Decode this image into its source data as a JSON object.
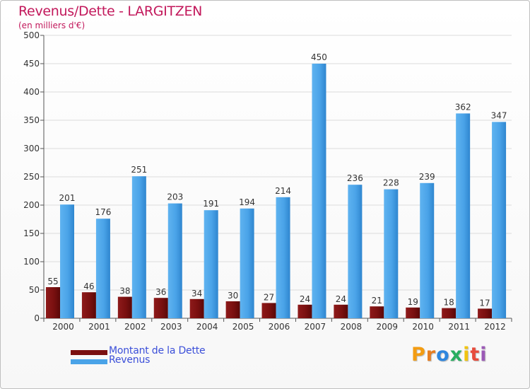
{
  "header": {
    "title": "Revenus/Dette - LARGITZEN",
    "subtitle": "(en milliers d'€)"
  },
  "legend": {
    "dette_label": "Montant de la Dette",
    "revenus_label": "Revenus"
  },
  "logo": {
    "text": "Proxiti",
    "letters": [
      "P",
      "r",
      "o",
      "x",
      "i",
      "t",
      "i"
    ],
    "colors": [
      "#f39c12",
      "#e67e22",
      "#2e86de",
      "#27ae60",
      "#f1c40f",
      "#e74c3c",
      "#9b59b6"
    ]
  },
  "colors": {
    "dette": "#7a1010",
    "revenus": "#4aa3e8",
    "title": "#c2185b",
    "legend_text": "#3b4fd9"
  },
  "chart_data": {
    "type": "bar",
    "title": "Revenus/Dette - LARGITZEN",
    "subtitle": "(en milliers d'€)",
    "categories": [
      "2000",
      "2001",
      "2002",
      "2003",
      "2004",
      "2005",
      "2006",
      "2007",
      "2008",
      "2009",
      "2010",
      "2011",
      "2012"
    ],
    "series": [
      {
        "name": "Montant de la Dette",
        "values": [
          55,
          46,
          38,
          36,
          34,
          30,
          27,
          24,
          24,
          21,
          19,
          18,
          17
        ]
      },
      {
        "name": "Revenus",
        "values": [
          201,
          176,
          251,
          203,
          191,
          194,
          214,
          450,
          236,
          228,
          239,
          362,
          347
        ]
      }
    ],
    "ylim": [
      0,
      500
    ],
    "yticks": [
      0,
      50,
      100,
      150,
      200,
      250,
      300,
      350,
      400,
      450,
      500
    ],
    "grid": true,
    "legend_position": "bottom-left"
  }
}
